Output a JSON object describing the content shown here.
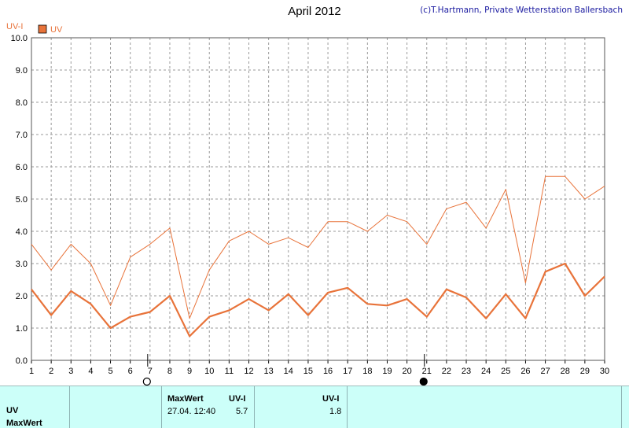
{
  "header": {
    "title": "April 2012",
    "credit": "(c)T.Hartmann, Private Wetterstation Ballersbach"
  },
  "colors": {
    "series": "#e8733a",
    "grid": "#9a9a9a",
    "axis_text": "#000000",
    "ylabel": "#e8733a",
    "panel_bg": "#ccfff9"
  },
  "chart_data": {
    "type": "line",
    "ylabel": "UV-I",
    "xlabel": "",
    "ylim": [
      0,
      10
    ],
    "yticks": [
      "0.0",
      "1.0",
      "2.0",
      "3.0",
      "4.0",
      "5.0",
      "6.0",
      "7.0",
      "8.0",
      "9.0",
      "10.0"
    ],
    "x": [
      1,
      2,
      3,
      4,
      5,
      6,
      7,
      8,
      9,
      10,
      11,
      12,
      13,
      14,
      15,
      16,
      17,
      18,
      19,
      20,
      21,
      22,
      23,
      24,
      25,
      26,
      27,
      28,
      29,
      30
    ],
    "grid": true,
    "legend": {
      "position": "top-left",
      "entries": [
        "UV"
      ]
    },
    "series": [
      {
        "name": "UV",
        "style": "max",
        "values": [
          3.6,
          2.8,
          3.6,
          3.0,
          1.7,
          3.2,
          3.6,
          4.1,
          1.3,
          2.8,
          3.7,
          4.0,
          3.6,
          3.8,
          3.5,
          4.3,
          4.3,
          4.0,
          4.5,
          4.3,
          3.6,
          4.7,
          4.9,
          4.1,
          5.3,
          2.4,
          5.7,
          5.7,
          5.0,
          5.4
        ]
      },
      {
        "name": "UV",
        "style": "mean",
        "values": [
          2.2,
          1.4,
          2.15,
          1.75,
          1.0,
          1.35,
          1.5,
          2.0,
          0.75,
          1.35,
          1.55,
          1.9,
          1.55,
          2.05,
          1.4,
          2.1,
          2.25,
          1.75,
          1.7,
          1.9,
          1.35,
          2.2,
          1.95,
          1.3,
          2.05,
          1.3,
          2.75,
          3.0,
          2.0,
          2.6
        ]
      }
    ],
    "moon_phases": [
      {
        "day": 7,
        "phase": "full"
      },
      {
        "day": 21,
        "phase": "new"
      }
    ]
  },
  "table": {
    "row_labels": [
      "UV",
      "MaxWert"
    ],
    "max_header": "MaxWert",
    "unit_header": "UV-I",
    "max_datetime": "27.04.  12:40",
    "max_value": "5.7",
    "avg_header": "UV-I",
    "avg_value": "1.8"
  }
}
